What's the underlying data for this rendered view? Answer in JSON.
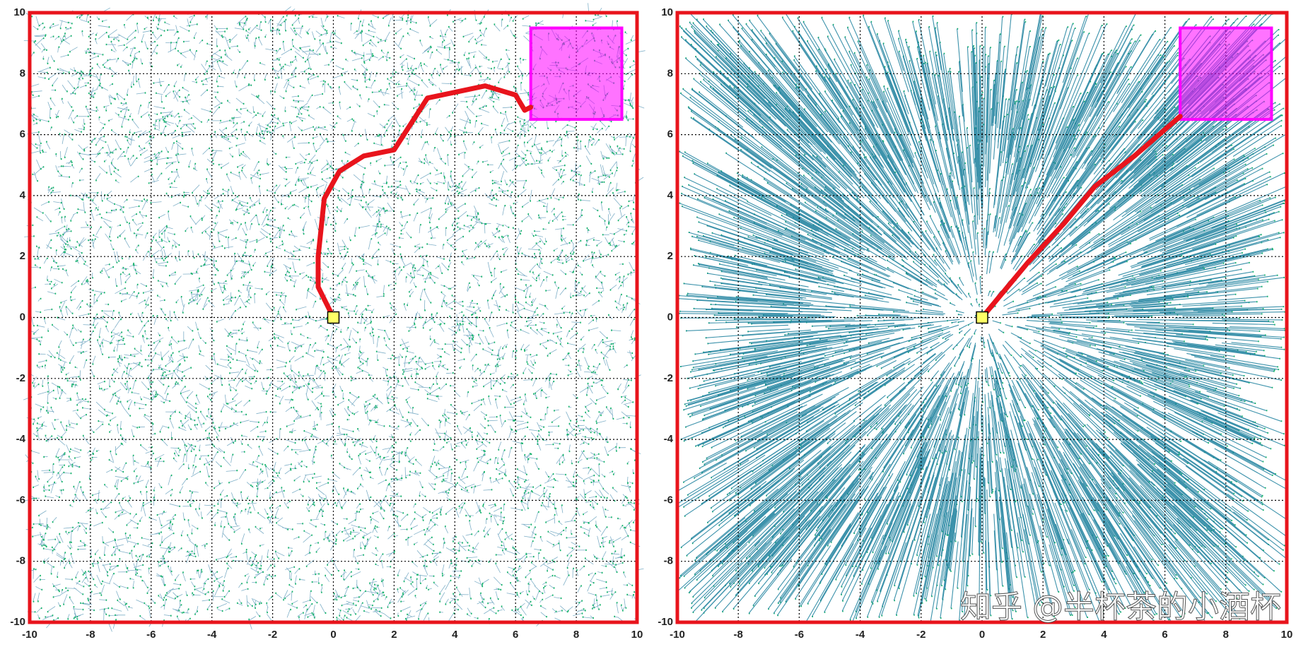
{
  "chart_data": [
    {
      "type": "line",
      "color": "#e8141c",
      "x": [
        0,
        -0.5,
        -0.5,
        -0.3,
        0.2,
        1,
        2,
        3.1,
        5,
        6,
        6.3,
        6.5
      ],
      "values": [
        0,
        1,
        2,
        3.9,
        4.8,
        5.3,
        5.5,
        7.2,
        7.6,
        7.3,
        6.8,
        6.9
      ],
      "goal": {
        "xlim": [
          6.5,
          9.5
        ],
        "ylim": [
          6.5,
          9.5
        ],
        "color": "#ff00ff"
      },
      "start": {
        "x": 0,
        "y": 0,
        "color": "#ffff66"
      },
      "xlim": [
        -10,
        10
      ],
      "ylim": [
        -10,
        10
      ],
      "xticks": [
        -10,
        -8,
        -6,
        -4,
        -2,
        0,
        2,
        4,
        6,
        8,
        10
      ],
      "yticks": [
        -10,
        -8,
        -6,
        -4,
        -2,
        0,
        2,
        4,
        6,
        8,
        10
      ],
      "grid": true
    },
    {
      "type": "line",
      "color": "#e8141c",
      "x": [
        0,
        1.5,
        2.7,
        3.7,
        5,
        6.5
      ],
      "values": [
        0,
        1.8,
        3.1,
        4.3,
        5.3,
        6.6
      ],
      "goal": {
        "xlim": [
          6.5,
          9.5
        ],
        "ylim": [
          6.5,
          9.5
        ],
        "color": "#ff00ff"
      },
      "start": {
        "x": 0,
        "y": 0,
        "color": "#ffff66"
      },
      "xlim": [
        -10,
        10
      ],
      "ylim": [
        -10,
        10
      ],
      "xticks": [
        -10,
        -8,
        -6,
        -4,
        -2,
        0,
        2,
        4,
        6,
        8,
        10
      ],
      "yticks": [
        -10,
        -8,
        -6,
        -4,
        -2,
        0,
        2,
        4,
        6,
        8,
        10
      ],
      "grid": true
    }
  ],
  "watermark": "知乎 @半杯茶的小酒杯"
}
